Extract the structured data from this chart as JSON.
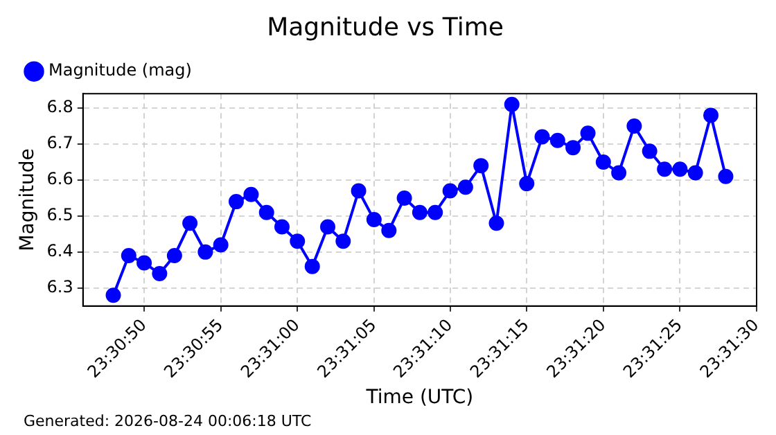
{
  "chart_data": {
    "type": "line",
    "title": "Magnitude vs Time",
    "xlabel": "Time (UTC)",
    "ylabel": "Magnitude",
    "annotations": [
      "Generated: 2026-08-24 00:06:18 UTC"
    ],
    "x": [
      23.51333,
      23.51361,
      23.51389,
      23.51417,
      23.51444,
      23.51472,
      23.515,
      23.51528,
      23.51556,
      23.51583,
      23.51611,
      23.51639,
      23.51667,
      23.51694,
      23.51722,
      23.5175,
      23.51778,
      23.51806,
      23.51833,
      23.51861,
      23.51889,
      23.51917,
      23.51944,
      23.51972,
      23.52,
      23.52028,
      23.52056,
      23.52083,
      23.52111,
      23.52139,
      23.52167,
      23.52194,
      23.52222,
      23.5225,
      23.52278,
      23.52306,
      23.52333,
      23.52361,
      23.52389,
      23.52417,
      23.52444
    ],
    "series": [
      {
        "name": "Magnitude (mag)",
        "color": "#0000ff",
        "values": [
          6.28,
          6.39,
          6.37,
          6.34,
          6.39,
          6.48,
          6.4,
          6.42,
          6.54,
          6.56,
          6.51,
          6.47,
          6.43,
          6.36,
          6.47,
          6.43,
          6.57,
          6.49,
          6.46,
          6.55,
          6.51,
          6.51,
          6.57,
          6.58,
          6.64,
          6.48,
          6.81,
          6.59,
          6.72,
          6.71,
          6.69,
          6.73,
          6.65,
          6.62,
          6.75,
          6.68,
          6.63,
          6.63,
          6.62,
          6.78,
          6.61
        ]
      }
    ],
    "xlim": [
      23.51278,
      23.525
    ],
    "xticks": [
      {
        "value": 23.51389,
        "label": "23:30:50"
      },
      {
        "value": 23.51528,
        "label": "23:30:55"
      },
      {
        "value": 23.51667,
        "label": "23:31:00"
      },
      {
        "value": 23.51806,
        "label": "23:31:05"
      },
      {
        "value": 23.51944,
        "label": "23:31:10"
      },
      {
        "value": 23.52083,
        "label": "23:31:15"
      },
      {
        "value": 23.52222,
        "label": "23:31:20"
      },
      {
        "value": 23.52361,
        "label": "23:31:25"
      },
      {
        "value": 23.525,
        "label": "23:31:30"
      }
    ],
    "ylim": [
      6.25,
      6.84
    ],
    "yticks": [
      6.3,
      6.4,
      6.5,
      6.6,
      6.7,
      6.8
    ],
    "grid": true,
    "legend": "top left",
    "marker": "circle",
    "line_style": "solid"
  }
}
